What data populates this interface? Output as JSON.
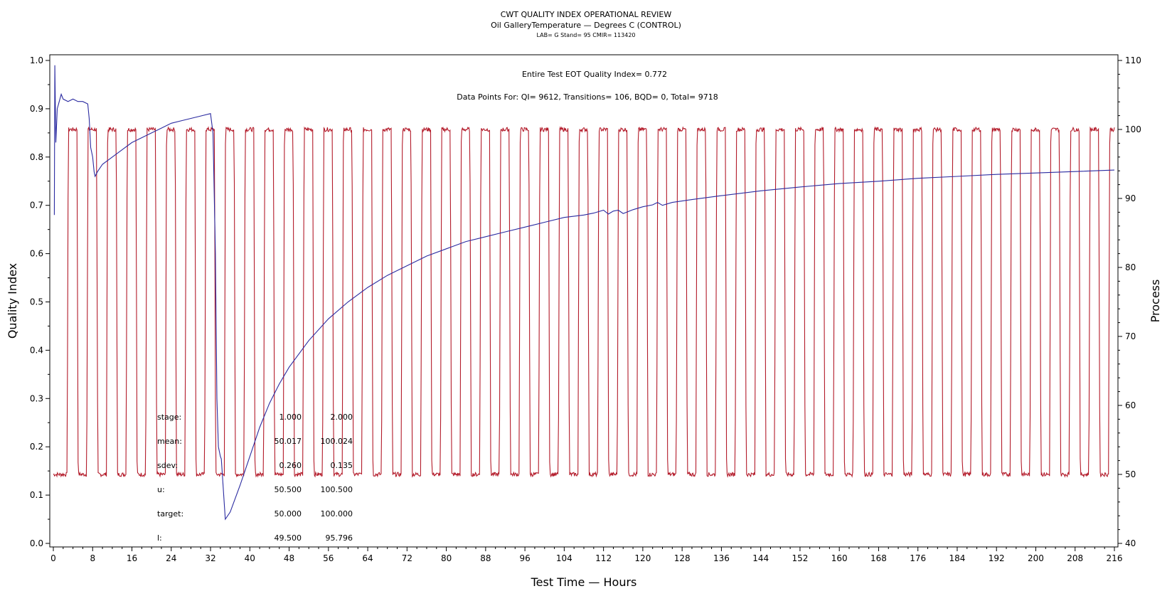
{
  "chart_data": {
    "type": "line",
    "title": "CWT QUALITY INDEX OPERATIONAL REVIEW",
    "subtitle": "Oil GalleryTemperature — Degrees C (CONTROL)",
    "lab_line": "LAB= G Stand= 95 CMIR= 113420",
    "xlabel": "Test Time — Hours",
    "ylabel_left": "Quality Index",
    "ylabel_right": "Process",
    "xlim": [
      0,
      216
    ],
    "ylim_left": [
      0.0,
      1.0
    ],
    "ylim_right": [
      40,
      110
    ],
    "x_ticks": [
      "0",
      "8",
      "16",
      "24",
      "32",
      "40",
      "48",
      "56",
      "64",
      "72",
      "80",
      "88",
      "96",
      "104",
      "112",
      "120",
      "128",
      "136",
      "144",
      "152",
      "160",
      "168",
      "176",
      "184",
      "192",
      "200",
      "208",
      "216"
    ],
    "y_left_ticks": [
      "0.0",
      "0.1",
      "0.2",
      "0.3",
      "0.4",
      "0.5",
      "0.6",
      "0.7",
      "0.8",
      "0.9",
      "1.0"
    ],
    "y_right_ticks": [
      "40",
      "50",
      "60",
      "70",
      "80",
      "90",
      "100",
      "110"
    ],
    "annotation_qi": "Entire Test EOT Quality Index=   0.772",
    "annotation_points": "Data Points For: QI=   9612, Transitions=    106, BQD=      0, Total=   9718",
    "stats": {
      "headers": [
        "stage:",
        "mean:",
        "sdev:",
        "u:",
        "target:",
        "l:"
      ],
      "col1": [
        "1.000",
        "50.017",
        "0.260",
        "50.500",
        "50.000",
        "49.500"
      ],
      "col2": [
        "2.000",
        "100.024",
        "0.135",
        "100.500",
        "100.000",
        "95.796"
      ]
    },
    "series": [
      {
        "axis": "left",
        "color": "#2a2aa0",
        "x": [
          0.2,
          0.3,
          0.5,
          0.8,
          1.2,
          1.6,
          2.0,
          3.0,
          4.0,
          5.0,
          6.0,
          7.0,
          7.3,
          7.6,
          8.0,
          8.3,
          8.5,
          9,
          10,
          12,
          14,
          16,
          18,
          20,
          22,
          24,
          26,
          28,
          30,
          32,
          32.5,
          33.0,
          33.3,
          33.6,
          34.0,
          34.2,
          35,
          36,
          38,
          40,
          42,
          44,
          46,
          48,
          52,
          56,
          60,
          64,
          68,
          72,
          76,
          80,
          84,
          88,
          92,
          96,
          100,
          104,
          108,
          110,
          112,
          113,
          114,
          115,
          116,
          118,
          120,
          122,
          123,
          124,
          126,
          130,
          136,
          144,
          152,
          160,
          168,
          176,
          184,
          192,
          200,
          208,
          216
        ],
        "values": [
          0.68,
          0.99,
          0.83,
          0.9,
          0.915,
          0.93,
          0.92,
          0.915,
          0.92,
          0.915,
          0.915,
          0.91,
          0.88,
          0.82,
          0.8,
          0.77,
          0.76,
          0.77,
          0.785,
          0.8,
          0.815,
          0.83,
          0.84,
          0.85,
          0.86,
          0.87,
          0.875,
          0.88,
          0.885,
          0.89,
          0.85,
          0.6,
          0.3,
          0.2,
          0.18,
          0.175,
          0.05,
          0.065,
          0.12,
          0.18,
          0.24,
          0.29,
          0.33,
          0.365,
          0.42,
          0.465,
          0.5,
          0.53,
          0.555,
          0.575,
          0.595,
          0.61,
          0.625,
          0.635,
          0.645,
          0.655,
          0.665,
          0.675,
          0.68,
          0.684,
          0.69,
          0.682,
          0.688,
          0.69,
          0.683,
          0.691,
          0.697,
          0.701,
          0.706,
          0.7,
          0.706,
          0.712,
          0.72,
          0.73,
          0.738,
          0.745,
          0.75,
          0.756,
          0.76,
          0.764,
          0.767,
          0.77,
          0.773
        ]
      },
      {
        "axis": "right",
        "color": "#b31b2a",
        "kind": "square-wave",
        "period_hours": 4,
        "first_rise_hours": 2.8,
        "high_value": 100,
        "low_value": 50
      }
    ]
  }
}
